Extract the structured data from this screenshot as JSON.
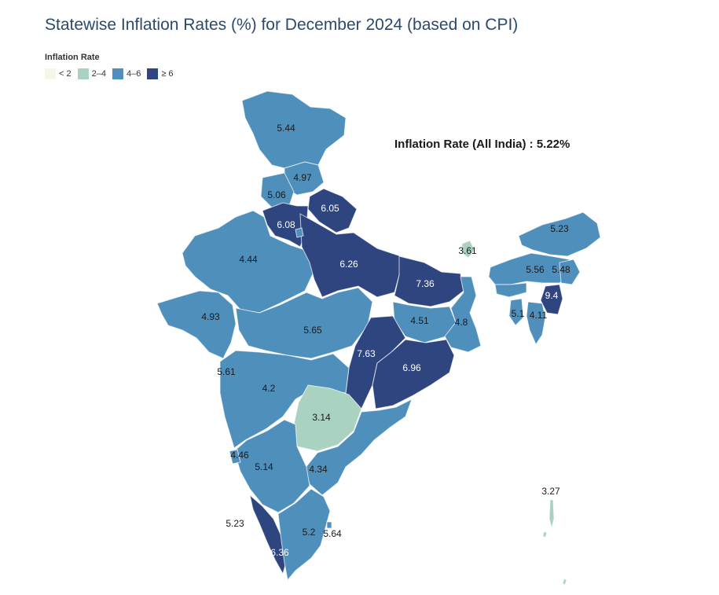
{
  "title": "Statewise Inflation Rates (%) for December 2024 (based on CPI)",
  "legend": {
    "title": "Inflation Rate",
    "items": [
      {
        "label": "< 2",
        "color": "#f6f5e6"
      },
      {
        "label": "2–4",
        "color": "#a9d3c0"
      },
      {
        "label": "4–6",
        "color": "#4f8fbb"
      },
      {
        "label": "≥ 6",
        "color": "#2e4580"
      }
    ]
  },
  "all_india": "Inflation Rate (All India) : 5.22%",
  "colors": {
    "band_2_4": "#a9d3c0",
    "band_4_6": "#4f8fbb",
    "band_6_plus": "#2e4580",
    "label_dark": "#1a1a1a",
    "label_light": "#ffffff"
  },
  "regions": [
    {
      "value": "5.44",
      "band": "4-6"
    },
    {
      "value": "4.97",
      "band": "4-6"
    },
    {
      "value": "5.06",
      "band": "4-6"
    },
    {
      "value": "6.05",
      "band": "6+"
    },
    {
      "value": "6.08",
      "band": "6+"
    },
    {
      "value": "6.26",
      "band": "6+"
    },
    {
      "value": "4.44",
      "band": "4-6"
    },
    {
      "value": "4.93",
      "band": "4-6"
    },
    {
      "value": "5.65",
      "band": "4-6"
    },
    {
      "value": "7.36",
      "band": "6+"
    },
    {
      "value": "3.61",
      "band": "2-4"
    },
    {
      "value": "5.23",
      "band": "4-6"
    },
    {
      "value": "5.56",
      "band": "4-6"
    },
    {
      "value": "5.48",
      "band": "4-6"
    },
    {
      "value": "9.4",
      "band": "6+"
    },
    {
      "value": "5.1",
      "band": "4-6"
    },
    {
      "value": "4.11",
      "band": "4-6"
    },
    {
      "value": "4.51",
      "band": "4-6"
    },
    {
      "value": "4.8",
      "band": "4-6"
    },
    {
      "value": "7.63",
      "band": "6+"
    },
    {
      "value": "6.96",
      "band": "6+"
    },
    {
      "value": "5.61",
      "band": "4-6"
    },
    {
      "value": "4.2",
      "band": "4-6"
    },
    {
      "value": "3.14",
      "band": "2-4"
    },
    {
      "value": "4.46",
      "band": "4-6"
    },
    {
      "value": "5.14",
      "band": "4-6"
    },
    {
      "value": "4.34",
      "band": "4-6"
    },
    {
      "value": "5.23",
      "band": "4-6"
    },
    {
      "value": "5.2",
      "band": "4-6"
    },
    {
      "value": "5.64",
      "band": "4-6"
    },
    {
      "value": "6.36",
      "band": "6+"
    },
    {
      "value": "3.27",
      "band": "2-4"
    }
  ]
}
